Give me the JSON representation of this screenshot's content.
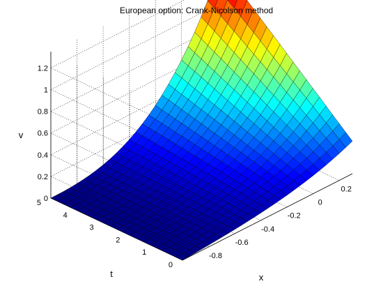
{
  "chart_data": {
    "type": "surface",
    "title": "European option: Crank-Nicolson method",
    "xlabel": "x",
    "ylabel": "t",
    "zlabel": "v",
    "x_ticks": [
      "-0.8",
      "-0.6",
      "-0.4",
      "-0.2",
      "0",
      "0.2"
    ],
    "t_ticks": [
      "0",
      "1",
      "2",
      "3",
      "4",
      "5"
    ],
    "v_ticks": [
      "0",
      "0.2",
      "0.4",
      "0.6",
      "0.8",
      "1",
      "1.2"
    ],
    "x_range": [
      -1,
      0.3
    ],
    "t_range": [
      0,
      5
    ],
    "v_range": [
      0,
      1.35
    ],
    "x_tick_values": [
      -0.8,
      -0.6,
      -0.4,
      -0.2,
      0,
      0.2
    ],
    "t_tick_values": [
      0,
      1,
      2,
      3,
      4,
      5
    ],
    "v_tick_values": [
      0,
      0.2,
      0.4,
      0.6,
      0.8,
      1.0,
      1.2
    ],
    "v_max": 1.35,
    "peak": {
      "x": 0.3,
      "t": 5,
      "v": 1.35
    },
    "corner_values": [
      {
        "x": -1,
        "t": 0,
        "v": 0
      },
      {
        "x": -1,
        "t": 5,
        "v": 0
      },
      {
        "x": 0.3,
        "t": 0,
        "v": 0.3
      },
      {
        "x": 0.3,
        "t": 5,
        "v": 1.35
      }
    ],
    "colormap": "jet",
    "grid": true,
    "view": "3d"
  }
}
